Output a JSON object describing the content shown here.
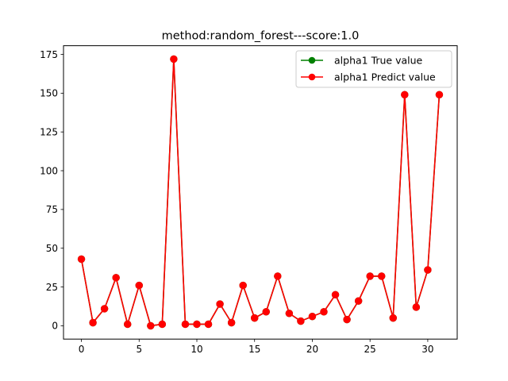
{
  "chart_data": {
    "type": "line",
    "title": "method:random_forest---score:1.0",
    "xlabel": "",
    "ylabel": "",
    "xlim": [
      -1.55,
      32.55
    ],
    "ylim": [
      -8.6,
      180.6
    ],
    "xticks": [
      0,
      5,
      10,
      15,
      20,
      25,
      30
    ],
    "yticks": [
      0,
      25,
      50,
      75,
      100,
      125,
      150,
      175
    ],
    "grid": false,
    "legend_position": "top-right",
    "x": [
      0,
      1,
      2,
      3,
      4,
      5,
      6,
      7,
      8,
      9,
      10,
      11,
      12,
      13,
      14,
      15,
      16,
      17,
      18,
      19,
      20,
      21,
      22,
      23,
      24,
      25,
      26,
      27,
      28,
      29,
      30,
      31
    ],
    "series": [
      {
        "name": "alpha1 True value",
        "color": "#008000",
        "marker": "circle",
        "values": [
          43,
          2,
          11,
          31,
          1,
          26,
          0,
          1,
          172,
          1,
          1,
          1,
          14,
          2,
          26,
          5,
          9,
          32,
          8,
          3,
          6,
          9,
          20,
          4,
          16,
          32,
          32,
          5,
          149,
          12,
          36,
          149
        ]
      },
      {
        "name": "alpha1 Predict value",
        "color": "#ff0000",
        "marker": "circle",
        "values": [
          43,
          2,
          11,
          31,
          1,
          26,
          0,
          1,
          172,
          1,
          1,
          1,
          14,
          2,
          26,
          5,
          9,
          32,
          8,
          3,
          6,
          9,
          20,
          4,
          16,
          32,
          32,
          5,
          149,
          12,
          36,
          149
        ]
      }
    ]
  }
}
